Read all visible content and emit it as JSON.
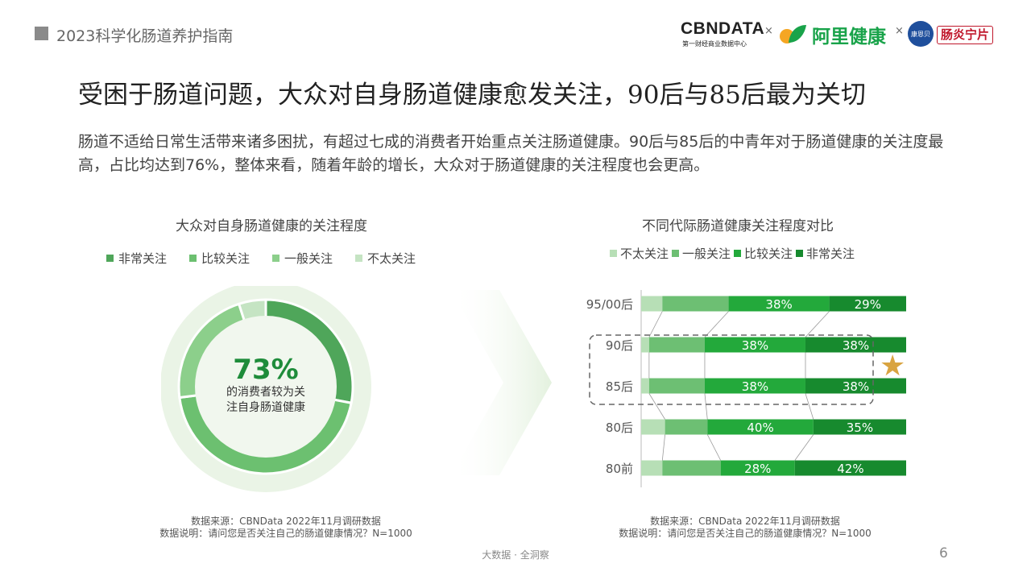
{
  "header": {
    "report_title": "2023科学化肠道养护指南"
  },
  "logos": {
    "cbn": "CBNDATA",
    "cbn_sub": "第一财经商业数据中心",
    "times": "×",
    "ali": "阿里健康",
    "badge": "康恩贝",
    "brand_box": "肠炎宁片"
  },
  "main": {
    "title": "受困于肠道问题，大众对自身肠道健康愈发关注，90后与85后最为关切",
    "description": "肠道不适给日常生活带来诸多困扰，有超过七成的消费者开始重点关注肠道健康。90后与85后的中青年对于肠道健康的关注度最高，占比均达到76%，整体来看，随着年龄的增长，大众对于肠道健康的关注程度也会更高。"
  },
  "chart_data": [
    {
      "type": "pie",
      "title": "大众对自身肠道健康的关注程度",
      "legend": [
        "非常关注",
        "比较关注",
        "一般关注",
        "不太关注"
      ],
      "legend_position": "top",
      "categories": [
        "非常关注",
        "比较关注",
        "一般关注",
        "不太关注"
      ],
      "values": [
        28,
        45,
        22,
        5
      ],
      "colors": [
        "#4fa65a",
        "#6cc070",
        "#8ccf8b",
        "#c5e4c3"
      ],
      "center_value": "73%",
      "center_label_line1": "的消费者较为关",
      "center_label_line2": "注自身肠道健康"
    },
    {
      "type": "bar",
      "stacked": true,
      "orientation": "horizontal",
      "title": "不同代际肠道健康关注程度对比",
      "legend_position": "top",
      "categories": [
        "95/00后",
        "90后",
        "85后",
        "80后",
        "80前"
      ],
      "series": [
        {
          "name": "不太关注",
          "color": "#b7dfb6",
          "values": [
            8,
            3,
            3,
            9,
            8
          ],
          "labels": [
            "",
            "",
            "",
            "",
            ""
          ]
        },
        {
          "name": "一般关注",
          "color": "#6dbf73",
          "values": [
            25,
            21,
            21,
            16,
            22
          ],
          "labels": [
            "",
            "",
            "",
            "",
            ""
          ]
        },
        {
          "name": "比较关注",
          "color": "#23a93b",
          "values": [
            38,
            38,
            38,
            40,
            28
          ],
          "labels": [
            "38%",
            "38%",
            "38%",
            "40%",
            "28%"
          ]
        },
        {
          "name": "非常关注",
          "color": "#178a2e",
          "values": [
            29,
            38,
            38,
            35,
            42
          ],
          "labels": [
            "29%",
            "38%",
            "38%",
            "35%",
            "42%"
          ]
        }
      ],
      "highlight_categories": [
        "90后",
        "85后"
      ],
      "xlim": [
        0,
        100
      ]
    }
  ],
  "sources": {
    "left_line1": "数据来源：CBNData 2022年11月调研数据",
    "left_line2": "数据说明：请问您是否关注自己的肠道健康情况？N=1000",
    "right_line1": "数据来源：CBNData 2022年11月调研数据",
    "right_line2": "数据说明：请问您是否关注自己的肠道健康情况？N=1000"
  },
  "footer": {
    "slogan": "大数据 · 全洞察",
    "page": "6"
  }
}
